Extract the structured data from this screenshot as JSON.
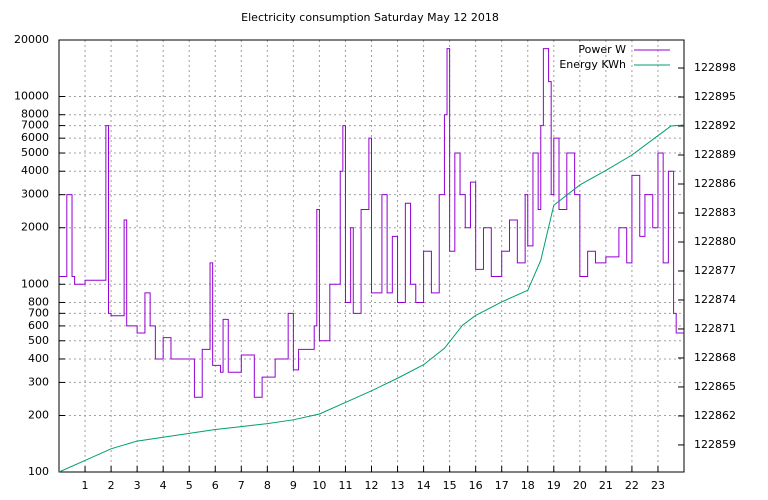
{
  "chart_data": {
    "type": "line",
    "title": "Electricity consumption Saturday May 12 2018",
    "xlim": [
      0,
      24
    ],
    "xticks": [
      1,
      2,
      3,
      4,
      5,
      6,
      7,
      8,
      9,
      10,
      11,
      12,
      13,
      14,
      15,
      16,
      17,
      18,
      19,
      20,
      21,
      22,
      23
    ],
    "ylim": [
      100,
      20000
    ],
    "log_y": true,
    "yticks": [
      100,
      200,
      300,
      400,
      500,
      600,
      700,
      800,
      1000,
      2000,
      3000,
      4000,
      5000,
      6000,
      7000,
      8000,
      10000,
      20000
    ],
    "y2lim": [
      122856.2,
      122900.9
    ],
    "y2ticks": [
      122859,
      122862,
      122865,
      122868,
      122871,
      122874,
      122877,
      122880,
      122883,
      122886,
      122889,
      122892,
      122895,
      122898
    ],
    "grid": true,
    "legend": "top-right",
    "steps": true,
    "series": [
      {
        "name": "Power W",
        "color": "#9400d3",
        "x": [
          0,
          0.3,
          0.5,
          0.6,
          1,
          1.7,
          1.8,
          1.9,
          2,
          2.5,
          2.6,
          3,
          3.3,
          3.5,
          3.7,
          4,
          4.3,
          5,
          5.2,
          5.5,
          5.8,
          5.9,
          6.2,
          6.3,
          6.5,
          7,
          7.5,
          7.8,
          8.3,
          8.8,
          9,
          9.2,
          9.8,
          9.9,
          10,
          10.4,
          10.8,
          10.9,
          11,
          11.2,
          11.3,
          11.6,
          11.9,
          12,
          12.4,
          12.6,
          12.8,
          13,
          13.3,
          13.5,
          13.7,
          14,
          14.3,
          14.6,
          14.8,
          14.9,
          15,
          15.2,
          15.4,
          15.6,
          15.8,
          16,
          16.3,
          16.6,
          17,
          17.3,
          17.6,
          17.9,
          18,
          18.2,
          18.4,
          18.5,
          18.6,
          18.8,
          18.9,
          19,
          19.2,
          19.5,
          19.8,
          20,
          20.3,
          20.6,
          21,
          21.5,
          21.8,
          22,
          22.3,
          22.5,
          22.8,
          23,
          23.2,
          23.4,
          23.6,
          23.7,
          24
        ],
        "values": [
          1100,
          3000,
          1100,
          1000,
          1050,
          1050,
          7000,
          700,
          680,
          2200,
          600,
          550,
          900,
          600,
          400,
          520,
          400,
          400,
          250,
          450,
          1300,
          370,
          340,
          650,
          340,
          420,
          250,
          320,
          400,
          700,
          350,
          450,
          600,
          2500,
          500,
          1000,
          4000,
          7000,
          800,
          2000,
          700,
          2500,
          6000,
          900,
          3000,
          900,
          1800,
          800,
          2700,
          1000,
          800,
          1500,
          900,
          3000,
          8000,
          18000,
          1500,
          5000,
          3000,
          2000,
          3500,
          1200,
          2000,
          1100,
          1500,
          2200,
          1300,
          3000,
          1600,
          5000,
          2500,
          7000,
          18000,
          12000,
          3000,
          6000,
          2500,
          5000,
          3000,
          1100,
          1500,
          1300,
          1400,
          2000,
          1300,
          3800,
          1800,
          3000,
          2000,
          5000,
          1300,
          4000,
          700,
          550,
          550
        ]
      },
      {
        "name": "Energy KWh",
        "color": "#009e73",
        "axis": "y2",
        "x": [
          0,
          1,
          2,
          3,
          4,
          5,
          6,
          7,
          8,
          9,
          10,
          11,
          12,
          13,
          14,
          14.8,
          15.5,
          16,
          17,
          18,
          18.5,
          19,
          20,
          21,
          22,
          23,
          23.5,
          24
        ],
        "values": [
          122856.2,
          122857.4,
          122858.6,
          122859.4,
          122859.8,
          122860.2,
          122860.6,
          122860.9,
          122861.2,
          122861.6,
          122862.2,
          122863.4,
          122864.6,
          122865.9,
          122867.3,
          122869.0,
          122871.4,
          122872.4,
          122873.8,
          122875,
          122878.1,
          122883.8,
          122885.9,
          122887.4,
          122889,
          122891,
          122892,
          122892.1
        ]
      }
    ]
  }
}
